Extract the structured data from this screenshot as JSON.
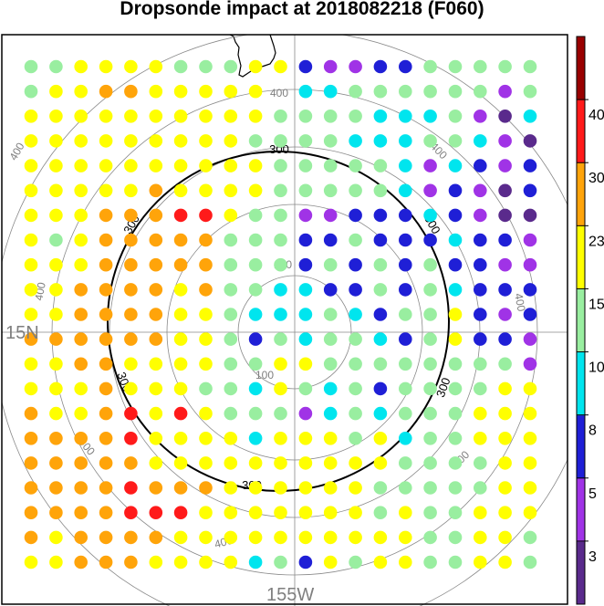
{
  "chart_data": {
    "type": "scatter",
    "title": "Dropsonde impact at 2018082218 (F060)",
    "lat_label": "15N",
    "lon_label": "155W",
    "ring_values": [
      "100",
      "200",
      "300",
      "400"
    ],
    "bold_contour": "300",
    "colorbar": {
      "levels": [
        3,
        5,
        8,
        10,
        15,
        23,
        30,
        40
      ],
      "tick_labels": [
        "3",
        "5",
        "8",
        "10",
        "15",
        "23",
        "30",
        "40"
      ],
      "colors": [
        "#5a2a8c",
        "#a033e6",
        "#1f1fd6",
        "#00e5ee",
        "#99eea0",
        "#ffff00",
        "#ffa40a",
        "#ff1a1a",
        "#990000"
      ]
    },
    "grid": {
      "cols": 21,
      "rows": 21,
      "code_legend": {
        "P": "<3",
        "V": "3-5",
        "B": "5-8",
        "C": "8-10",
        "G": "10-15",
        "Y": "15-23",
        "O": "23-30",
        "R": "30-40"
      },
      "row_codes": [
        "GGYYYYGGGYYBVVBBGGGGG",
        "GYYOOYYYYY.CCGGGGGGVG",
        "YYYYYYYYYYGGGGCCCGVPC",
        "YYYYYYYYYGGGGCCCGGCVP",
        "YYYYYYYYYYGGGGGCVCBVB",
        "YYYYYOYYYYGGGGGCVBVPB",
        "YYYOOORRYGGVVBBBCBVPP",
        "YGYOOOOOGGGBBGBBBCBBV",
        "YYYOOOOOGGGBGBGBGBBVV",
        "YYOOOOYOGGCCBBGBGCBBB",
        "YYOOOOYYGCCCGCBGGYBVB",
        "OOOOOOYYGBGCGGCBGYBBV",
        "YYOOYYYYGGYYGGGGGGGGV",
        "YYYOYYYGGCYGCGBGGGGYY",
        "OYYORYRYGGGVCGCGGGYYY",
        "OOOORYYYYCYYYGYCGGYYY",
        "OOOOOYYYYYYYYYYGGGGYY",
        "OOOOROOOYYYYYYGGGGGYY",
        "OOOORRRYYYYYYYGYGGYYY",
        "OYOOOOYYYYYYYYYYGGYYG",
        "YYOOOYYYYCGBYGYYGGYYG"
      ]
    }
  }
}
